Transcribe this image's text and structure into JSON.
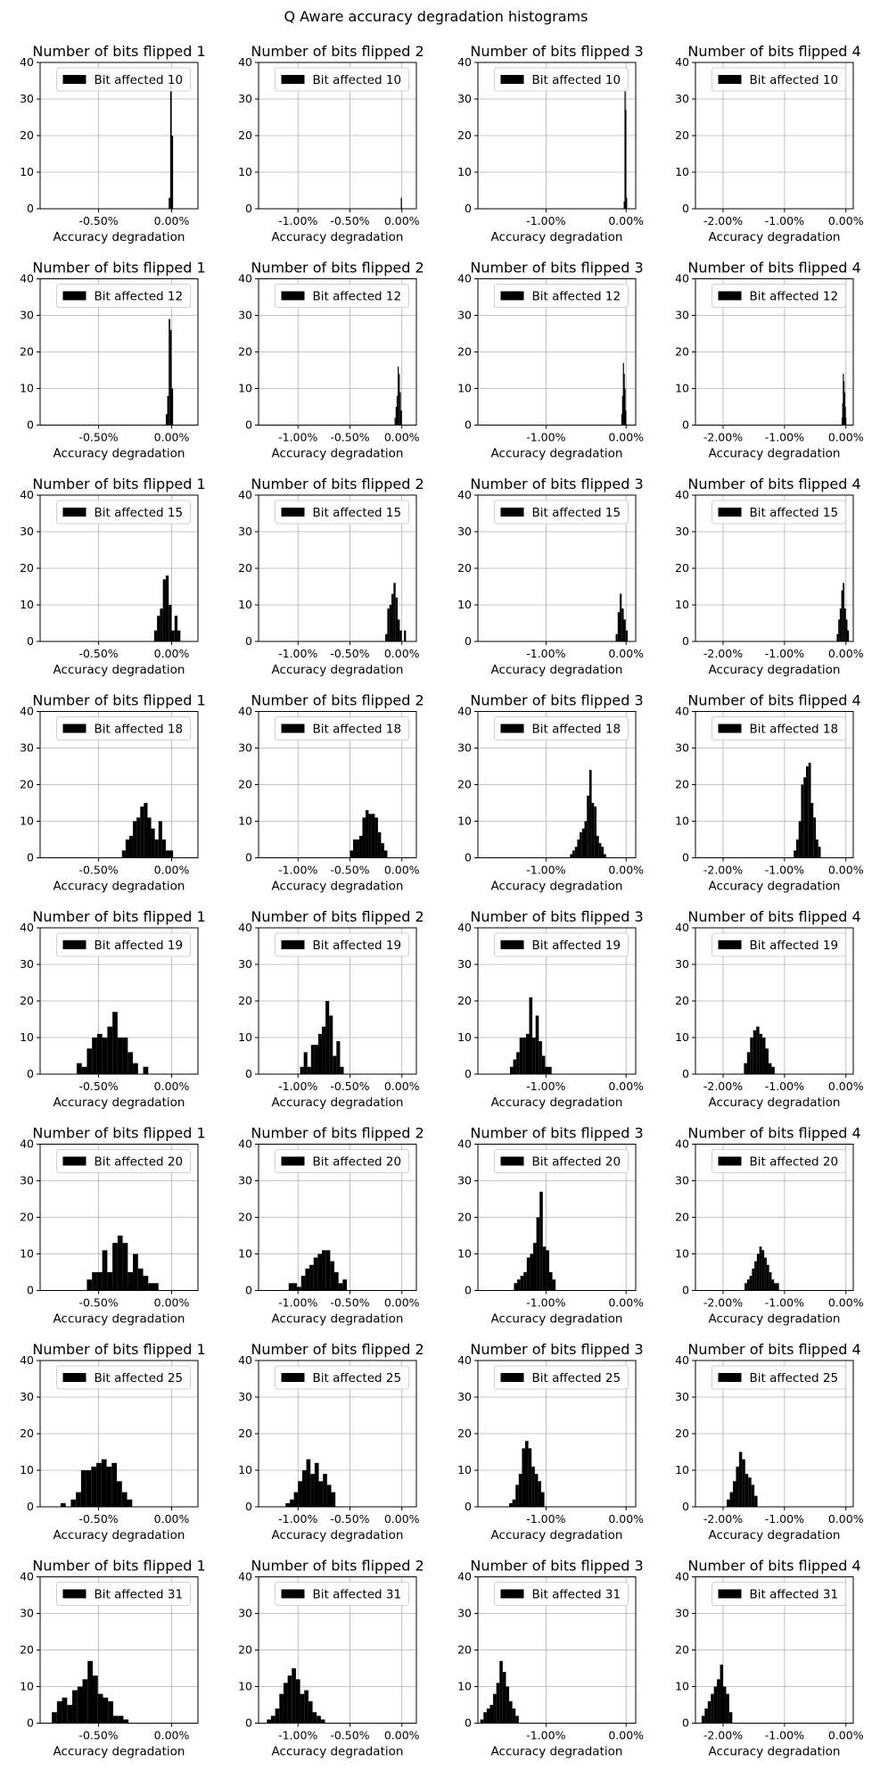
{
  "figure": {
    "title": "Q Aware accuracy degradation histograms"
  },
  "chart_data": {
    "type": "histogram-grid",
    "rows": 8,
    "cols": 4,
    "xlabel": "Accuracy degradation",
    "ylim": [
      0,
      40
    ],
    "yticks": [
      0,
      10,
      20,
      30,
      40
    ],
    "grid": true,
    "legend_position": "top",
    "bar_color": "#000000",
    "column_titles": [
      "Number of bits flipped 1",
      "Number of bits flipped 2",
      "Number of bits flipped 3",
      "Number of bits flipped 4"
    ],
    "column_xlim": [
      [
        -0.9,
        0.18
      ],
      [
        -1.38,
        0.14
      ],
      [
        -1.85,
        0.12
      ],
      [
        -2.45,
        0.12
      ]
    ],
    "column_xticks": [
      [
        -0.5,
        0.0
      ],
      [
        -1.0,
        -0.5,
        0.0
      ],
      [
        -1.0,
        0.0
      ],
      [
        -2.0,
        -1.0,
        0.0
      ]
    ],
    "column_xtick_labels": [
      [
        "-0.50%",
        "0.00%"
      ],
      [
        "-1.00%",
        "-0.50%",
        "0.00%"
      ],
      [
        "-1.00%",
        "0.00%"
      ],
      [
        "-2.00%",
        "-1.00%",
        "0.00%"
      ]
    ],
    "row_bits": [
      "10",
      "12",
      "15",
      "18",
      "19",
      "20",
      "25",
      "31"
    ],
    "legend_prefix": "Bit affected",
    "panels": [
      [
        {
          "x_start": -0.02,
          "bin_width": 0.01,
          "counts": [
            3,
            34,
            20
          ]
        },
        {
          "x_start": -0.02,
          "bin_width": 0.01,
          "counts": [
            0,
            3
          ]
        },
        {
          "x_start": -0.03,
          "bin_width": 0.01,
          "counts": [
            2,
            33,
            27,
            3
          ]
        },
        {
          "x_start": 0.0,
          "bin_width": 0.01,
          "counts": []
        }
      ],
      [
        {
          "x_start": -0.04,
          "bin_width": 0.01,
          "counts": [
            3,
            8,
            29,
            26,
            10
          ]
        },
        {
          "x_start": -0.07,
          "bin_width": 0.01,
          "counts": [
            2,
            5,
            8,
            16,
            14,
            9,
            4
          ]
        },
        {
          "x_start": -0.06,
          "bin_width": 0.01,
          "counts": [
            3,
            8,
            17,
            14,
            10,
            4
          ]
        },
        {
          "x_start": -0.07,
          "bin_width": 0.01,
          "counts": [
            2,
            6,
            14,
            12,
            9,
            5,
            2
          ]
        }
      ],
      [
        {
          "x_start": -0.12,
          "bin_width": 0.02,
          "counts": [
            3,
            7,
            9,
            17,
            18,
            10,
            3,
            7,
            3
          ]
        },
        {
          "x_start": -0.16,
          "bin_width": 0.02,
          "counts": [
            2,
            9,
            10,
            13,
            16,
            12,
            6,
            3,
            0,
            3
          ]
        },
        {
          "x_start": -0.13,
          "bin_width": 0.025,
          "counts": [
            2,
            8,
            13,
            9,
            6,
            3
          ]
        },
        {
          "x_start": -0.15,
          "bin_width": 0.025,
          "counts": [
            2,
            6,
            9,
            14,
            16,
            9,
            6,
            3
          ]
        }
      ],
      [
        {
          "x_start": -0.34,
          "bin_width": 0.025,
          "counts": [
            2,
            5,
            6,
            10,
            11,
            14,
            15,
            11,
            8,
            5,
            10,
            5,
            2,
            2
          ]
        },
        {
          "x_start": -0.5,
          "bin_width": 0.03,
          "counts": [
            2,
            5,
            5,
            6,
            11,
            13,
            12,
            12,
            11,
            7,
            4,
            2
          ]
        },
        {
          "x_start": -0.7,
          "bin_width": 0.03,
          "counts": [
            1,
            2,
            3,
            5,
            7,
            8,
            10,
            17,
            24,
            15,
            14,
            6,
            4,
            3,
            1
          ]
        },
        {
          "x_start": -0.85,
          "bin_width": 0.04,
          "counts": [
            2,
            5,
            10,
            20,
            22,
            25,
            26,
            15,
            11,
            5,
            3
          ]
        }
      ],
      [
        {
          "x_start": -0.65,
          "bin_width": 0.035,
          "counts": [
            3,
            2,
            7,
            10,
            11,
            10,
            13,
            17,
            10,
            10,
            6,
            3,
            0,
            2
          ]
        },
        {
          "x_start": -0.98,
          "bin_width": 0.035,
          "counts": [
            2,
            6,
            2,
            8,
            8,
            11,
            13,
            20,
            16,
            5,
            9,
            2
          ]
        },
        {
          "x_start": -1.45,
          "bin_width": 0.04,
          "counts": [
            2,
            4,
            6,
            10,
            10,
            11,
            21,
            10,
            16,
            9,
            5,
            2,
            2
          ]
        },
        {
          "x_start": -1.66,
          "bin_width": 0.05,
          "counts": [
            3,
            6,
            10,
            12,
            13,
            11,
            10,
            7,
            3,
            2
          ]
        }
      ],
      [
        {
          "x_start": -0.58,
          "bin_width": 0.035,
          "counts": [
            3,
            5,
            5,
            11,
            5,
            13,
            15,
            13,
            5,
            10,
            6,
            4,
            2,
            2
          ]
        },
        {
          "x_start": -1.09,
          "bin_width": 0.04,
          "counts": [
            2,
            2,
            1,
            4,
            6,
            7,
            9,
            10,
            11,
            11,
            8,
            5,
            2,
            3
          ]
        },
        {
          "x_start": -1.4,
          "bin_width": 0.04,
          "counts": [
            2,
            3,
            4,
            5,
            9,
            10,
            13,
            20,
            27,
            12,
            11,
            5,
            3
          ]
        },
        {
          "x_start": -1.65,
          "bin_width": 0.04,
          "counts": [
            2,
            3,
            4,
            6,
            8,
            10,
            12,
            11,
            9,
            7,
            5,
            3,
            2,
            2
          ]
        }
      ],
      [
        {
          "x_start": -0.76,
          "bin_width": 0.035,
          "counts": [
            1,
            0,
            2,
            4,
            10,
            10,
            11,
            12,
            13,
            11,
            12,
            7,
            4,
            2
          ]
        },
        {
          "x_start": -1.12,
          "bin_width": 0.04,
          "counts": [
            1,
            2,
            4,
            7,
            10,
            13,
            9,
            12,
            7,
            9,
            6,
            4
          ]
        },
        {
          "x_start": -1.46,
          "bin_width": 0.04,
          "counts": [
            1,
            2,
            6,
            9,
            16,
            18,
            16,
            11,
            9,
            7,
            4
          ]
        },
        {
          "x_start": -1.94,
          "bin_width": 0.05,
          "counts": [
            2,
            4,
            7,
            11,
            15,
            13,
            9,
            8,
            6,
            3
          ]
        }
      ],
      [
        {
          "x_start": -0.82,
          "bin_width": 0.035,
          "counts": [
            3,
            6,
            7,
            5,
            9,
            10,
            12,
            17,
            13,
            8,
            7,
            6,
            2,
            2,
            1
          ]
        },
        {
          "x_start": -1.3,
          "bin_width": 0.04,
          "counts": [
            1,
            2,
            4,
            8,
            11,
            13,
            15,
            12,
            8,
            9,
            6,
            3,
            2,
            1
          ]
        },
        {
          "x_start": -1.82,
          "bin_width": 0.04,
          "counts": [
            1,
            3,
            4,
            5,
            8,
            11,
            17,
            14,
            10,
            6,
            4,
            2
          ]
        },
        {
          "x_start": -2.35,
          "bin_width": 0.05,
          "counts": [
            2,
            4,
            6,
            8,
            10,
            12,
            16,
            10,
            8,
            3
          ]
        }
      ]
    ]
  }
}
